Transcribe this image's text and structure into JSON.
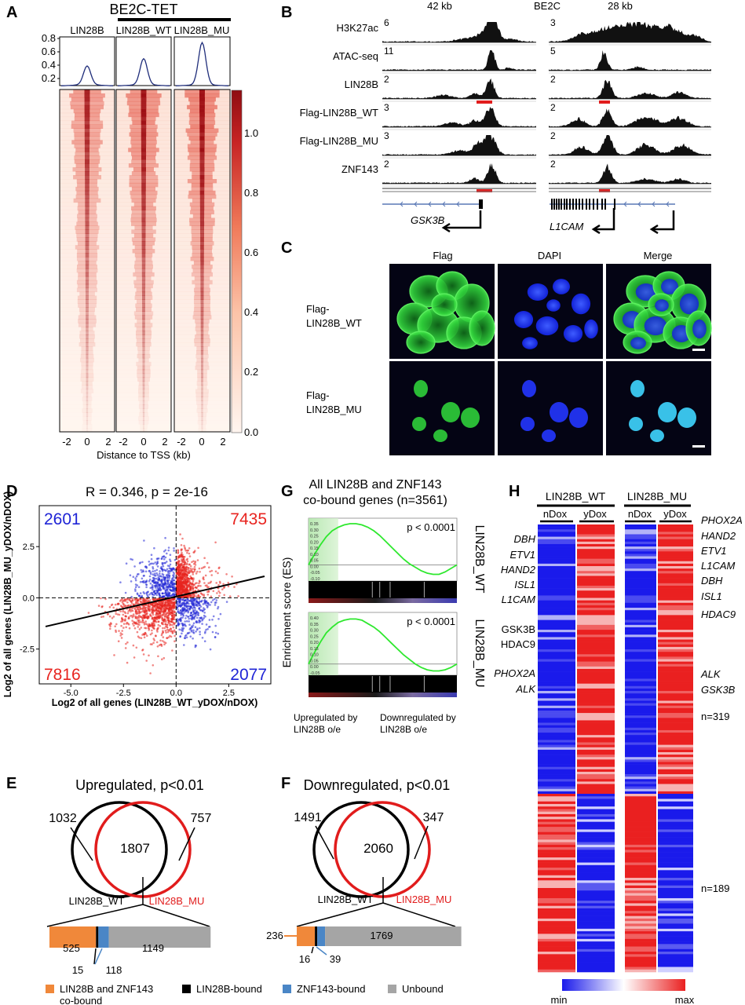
{
  "figure": {
    "panel_labels": [
      "A",
      "B",
      "C",
      "D",
      "E",
      "F",
      "G",
      "H"
    ]
  },
  "panel_a": {
    "header": "BE2C-TET",
    "columns": [
      "LIN28B",
      "LIN28B_WT",
      "LIN28B_MU"
    ],
    "profile_yticks": [
      "0.8",
      "0.6",
      "0.4",
      "0.2"
    ],
    "xticks": [
      "-2",
      "0",
      "2"
    ],
    "xlabel": "Distance to TSS (kb)",
    "colorbar_ticks": [
      "1.0",
      "0.8",
      "0.6",
      "0.4",
      "0.2",
      "0.0"
    ],
    "colors": {
      "heat_high": "#9e0f14",
      "heat_low": "#fff5ef",
      "profile_line": "#1f2d7a"
    }
  },
  "panel_b": {
    "header_left": "42 kb",
    "header_mid": "BE2C",
    "header_right": "28 kb",
    "tracks": [
      {
        "name": "H3K27ac",
        "scale_left": "6",
        "scale_right": "3"
      },
      {
        "name": "ATAC-seq",
        "scale_left": "11",
        "scale_right": "5"
      },
      {
        "name": "LIN28B",
        "scale_left": "2",
        "scale_right": "2"
      },
      {
        "name": "Flag-LIN28B_WT",
        "scale_left": "3",
        "scale_right": "2"
      },
      {
        "name": "Flag-LIN28B_MU",
        "scale_left": "3",
        "scale_right": "2"
      },
      {
        "name": "ZNF143",
        "scale_left": "2",
        "scale_right": "2"
      }
    ],
    "gene_left": "GSK3B",
    "gene_right": "L1CAM"
  },
  "panel_c": {
    "columns": [
      "Flag",
      "DAPI",
      "Merge"
    ],
    "row_wt": [
      "Flag-",
      "LIN28B_WT"
    ],
    "row_mu": [
      "Flag-",
      "LIN28B_MU"
    ],
    "colors": {
      "flag": "#2fcf3a",
      "dapi": "#1a2cff",
      "background": "#040414",
      "merge_mu": "#3fd6ff"
    }
  },
  "chart_data": [
    {
      "panel": "D",
      "type": "scatter",
      "title": "R = 0.346, p = 2e-16",
      "xlabel": "Log2 of all genes (LIN28B_WT_yDOX/nDOX)",
      "ylabel": "Log2 of all genes (LIN28B_MU_yDOX/nDOX)",
      "xticks": [
        "-5.0",
        "-2.5",
        "0.0",
        "2.5"
      ],
      "yticks": [
        "2.5",
        "0.0",
        "-2.5"
      ],
      "xlim": [
        -6.5,
        4.5
      ],
      "ylim": [
        -4.2,
        4.5
      ],
      "regression": {
        "x0": -6.2,
        "y0": -1.4,
        "x1": 4.2,
        "y1": 1.05
      },
      "quadrant_counts": {
        "top_left": "2601",
        "top_right": "7435",
        "bottom_left": "7816",
        "bottom_right": "2077"
      },
      "colors": {
        "red": "#e8241f",
        "blue": "#1f24d6"
      }
    },
    {
      "panel": "E",
      "type": "venn",
      "title": "Upregulated, p<0.01",
      "set_a": "LIN28B_WT",
      "set_b": "LIN28B_MU",
      "only_a": "1032",
      "both": "1807",
      "only_b": "757",
      "breakdown_values": [
        525,
        15,
        118,
        1149
      ],
      "breakdown_labels": [
        "525",
        "15",
        "118",
        "1149"
      ]
    },
    {
      "panel": "F",
      "type": "venn",
      "title": "Downregulated, p<0.01",
      "set_a": "LIN28B_WT",
      "set_b": "LIN28B_MU",
      "only_a": "1491",
      "both": "2060",
      "only_b": "347",
      "breakdown_values": [
        236,
        16,
        39,
        1769
      ],
      "breakdown_labels": [
        "236",
        "16",
        "39",
        "1769"
      ]
    },
    {
      "panel": "G",
      "type": "line",
      "title_line1": "All LIN28B and ZNF143",
      "title_line2": "co-bound genes (n=3561)",
      "ylabel": "Enrichment score (ES)",
      "plots": [
        {
          "name": "LIN28B_WT",
          "pvalue": "p < 0.0001",
          "yticks": [
            "0.35",
            "0.30",
            "0.25",
            "0.20",
            "0.15",
            "0.10",
            "0.05",
            "0.00",
            "-0.05",
            "-0.10"
          ],
          "es": [
            0,
            0.09,
            0.17,
            0.24,
            0.29,
            0.32,
            0.34,
            0.35,
            0.35,
            0.34,
            0.32,
            0.29,
            0.25,
            0.2,
            0.15,
            0.1,
            0.05,
            0.01,
            -0.02,
            -0.05,
            -0.07,
            -0.08,
            -0.08,
            -0.06,
            -0.03,
            0
          ]
        },
        {
          "name": "LIN28B_MU",
          "pvalue": "p < 0.0001",
          "yticks": [
            "0.40",
            "0.35",
            "0.30",
            "0.25",
            "0.20",
            "0.15",
            "0.10",
            "0.05",
            "0.00",
            "-0.05"
          ],
          "es": [
            0,
            0.1,
            0.19,
            0.27,
            0.32,
            0.36,
            0.38,
            0.39,
            0.39,
            0.38,
            0.35,
            0.32,
            0.28,
            0.23,
            0.18,
            0.13,
            0.08,
            0.04,
            0,
            -0.03,
            -0.05,
            -0.06,
            -0.06,
            -0.05,
            -0.03,
            0
          ]
        }
      ],
      "xlabel_left": [
        "Upregulated by",
        "LIN28B o/e"
      ],
      "xlabel_right": [
        "Downregulated by",
        "LIN28B o/e"
      ]
    }
  ],
  "panel_h": {
    "groups": [
      "LIN28B_WT",
      "LIN28B_MU"
    ],
    "conditions": [
      "nDox",
      "yDox",
      "nDox",
      "yDox"
    ],
    "left_genes": [
      {
        "t": "DBH",
        "i": true
      },
      {
        "t": "ETV1",
        "i": true
      },
      {
        "t": "HAND2",
        "i": true
      },
      {
        "t": "ISL1",
        "i": true
      },
      {
        "t": "L1CAM",
        "i": true
      },
      {
        "t": "GSK3B",
        "i": false
      },
      {
        "t": "HDAC9",
        "i": false
      },
      {
        "t": "PHOX2A",
        "i": true
      },
      {
        "t": "ALK",
        "i": true
      }
    ],
    "right_genes": [
      {
        "t": "PHOX2A",
        "i": true
      },
      {
        "t": "HAND2",
        "i": true
      },
      {
        "t": "ETV1",
        "i": true
      },
      {
        "t": "L1CAM",
        "i": true
      },
      {
        "t": "DBH",
        "i": true
      },
      {
        "t": "ISL1",
        "i": true
      },
      {
        "t": "HDAC9",
        "i": true
      },
      {
        "t": "ALK",
        "i": true
      },
      {
        "t": "GSK3B",
        "i": true
      }
    ],
    "n_up": "n=319",
    "n_down": "n=189",
    "scale_min": "min",
    "scale_max": "max",
    "colors": {
      "blue": "#1a1aeb",
      "red": "#ea2020",
      "white": "#ffffff"
    }
  },
  "legend": {
    "items": [
      {
        "label1": "LIN28B and ZNF143",
        "label2": "co-bound",
        "color": "#f0883a"
      },
      {
        "label1": "LIN28B-bound",
        "label2": "",
        "color": "#000000"
      },
      {
        "label1": "ZNF143-bound",
        "label2": "",
        "color": "#4a86c6"
      },
      {
        "label1": "Unbound",
        "label2": "",
        "color": "#a5a5a5"
      }
    ]
  }
}
